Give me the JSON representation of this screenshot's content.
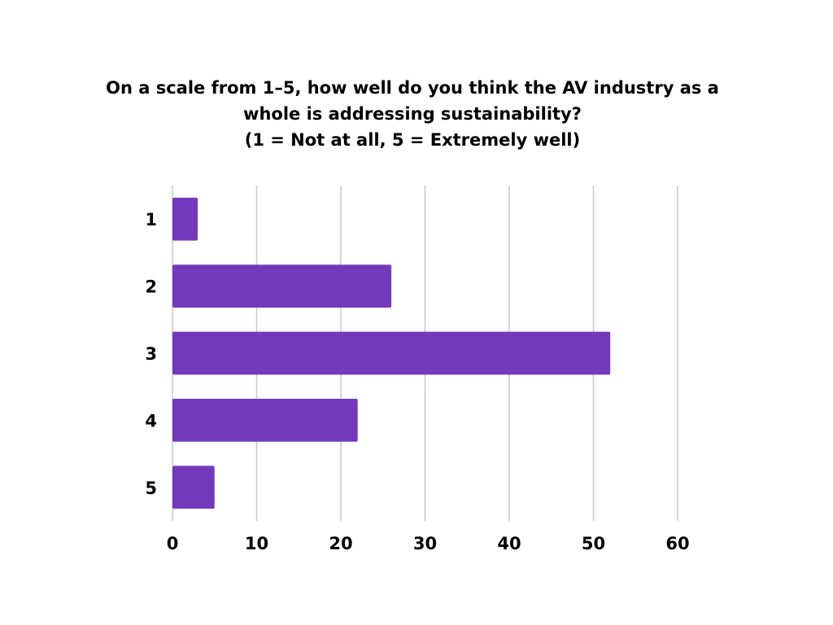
{
  "chart_data": {
    "type": "bar",
    "orientation": "horizontal",
    "title_lines": [
      "On a scale from 1–5, how well do you think the AV industry as a",
      "whole is addressing sustainability?",
      "(1 = Not at all, 5 = Extremely well)"
    ],
    "categories": [
      "1",
      "2",
      "3",
      "4",
      "5"
    ],
    "values": [
      3,
      26,
      52,
      22,
      5
    ],
    "xlim": [
      0,
      60
    ],
    "xticks": [
      0,
      10,
      20,
      30,
      40,
      50,
      60
    ],
    "grid": true,
    "legend": "none",
    "bar_color": "#7339BA",
    "grid_color": "#c8c8c8"
  }
}
